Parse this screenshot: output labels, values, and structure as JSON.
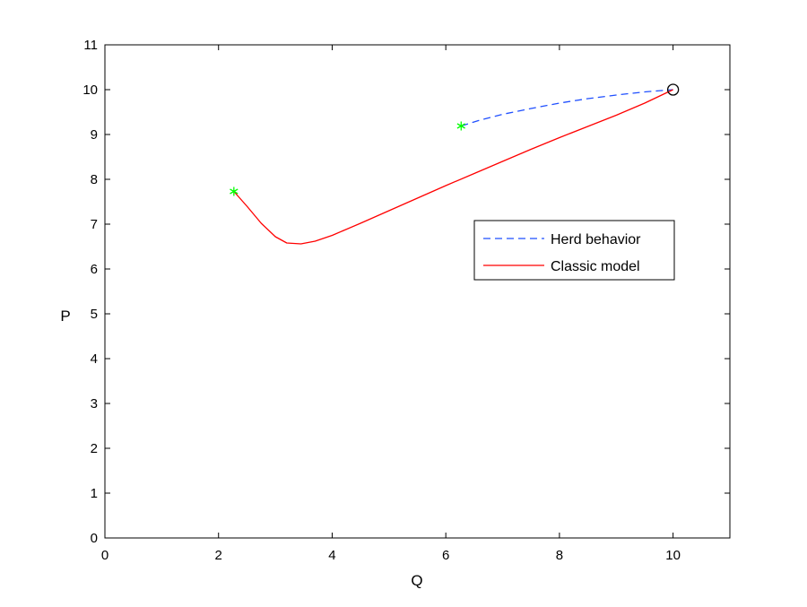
{
  "chart_data": {
    "type": "line",
    "title": "",
    "xlabel": "Q",
    "ylabel": "P",
    "xlim": [
      0,
      11
    ],
    "ylim": [
      0,
      11
    ],
    "xticks": [
      0,
      2,
      4,
      6,
      8,
      10
    ],
    "yticks": [
      0,
      1,
      2,
      3,
      4,
      5,
      6,
      7,
      8,
      9,
      10,
      11
    ],
    "grid": false,
    "legend_position": "right-center",
    "series": [
      {
        "name": "Herd behavior",
        "color": "#1f4fff",
        "style": "dashed",
        "x": [
          6.27,
          6.6,
          7.0,
          7.5,
          8.0,
          8.5,
          9.0,
          9.5,
          10.0
        ],
        "y": [
          9.19,
          9.32,
          9.45,
          9.58,
          9.7,
          9.8,
          9.88,
          9.95,
          10.0
        ]
      },
      {
        "name": "Classic model",
        "color": "#ff0000",
        "style": "solid",
        "x": [
          2.27,
          2.5,
          2.75,
          3.0,
          3.2,
          3.45,
          3.7,
          4.0,
          4.5,
          5.0,
          5.5,
          6.0,
          6.5,
          7.0,
          7.5,
          8.0,
          8.5,
          9.0,
          9.5,
          10.0
        ],
        "y": [
          7.73,
          7.4,
          7.02,
          6.72,
          6.58,
          6.56,
          6.62,
          6.75,
          7.02,
          7.3,
          7.58,
          7.86,
          8.13,
          8.4,
          8.67,
          8.93,
          9.18,
          9.43,
          9.7,
          10.0
        ]
      }
    ],
    "markers": [
      {
        "type": "asterisk",
        "color": "#00ff00",
        "x": 2.27,
        "y": 7.73
      },
      {
        "type": "asterisk",
        "color": "#00ff00",
        "x": 6.27,
        "y": 9.19
      },
      {
        "type": "circle",
        "color": "#000000",
        "x": 10.0,
        "y": 10.0
      }
    ]
  }
}
